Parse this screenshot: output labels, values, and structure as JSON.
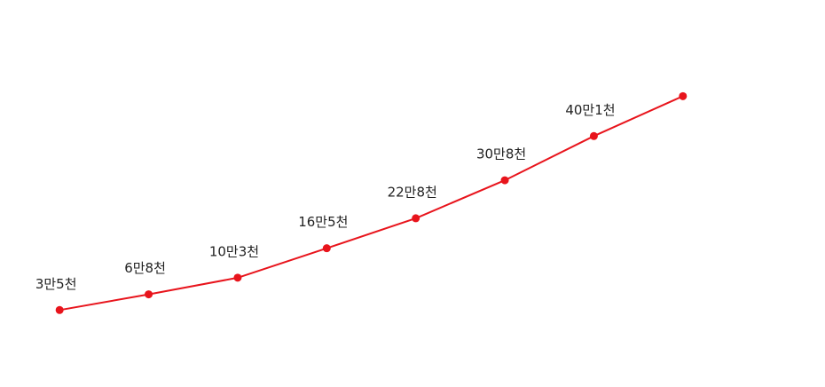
{
  "chart_data": {
    "type": "line",
    "categories": [
      null,
      null,
      null,
      null,
      null,
      null,
      null,
      null
    ],
    "values": [
      35000,
      68000,
      103000,
      165000,
      228000,
      308000,
      401000,
      485000
    ],
    "value_labels": [
      "3만5천",
      "6만8천",
      "10만3천",
      "16만5천",
      "22만8천",
      "30만8천",
      "40만1천",
      null
    ],
    "color": "#e8141c",
    "ylim": [
      0,
      650000
    ]
  }
}
